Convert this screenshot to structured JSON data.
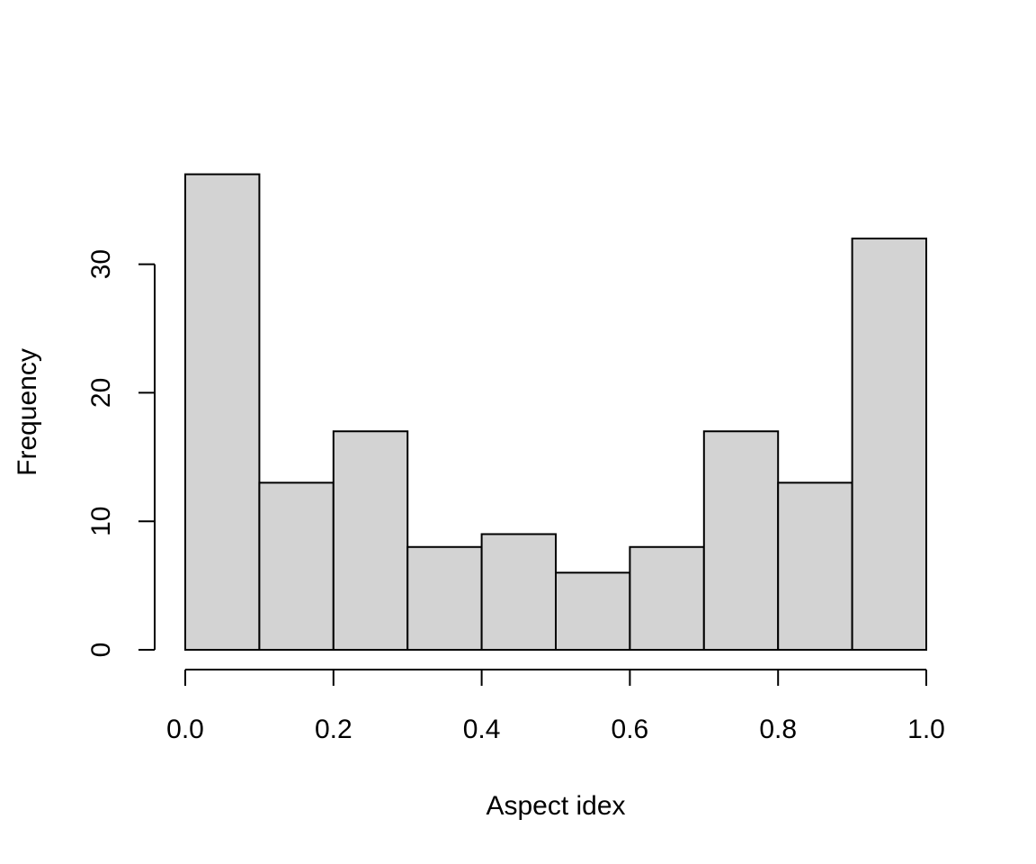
{
  "chart_data": {
    "type": "bar",
    "title": "",
    "xlabel": "Aspect idex",
    "ylabel": "Frequency",
    "bin_edges": [
      0.0,
      0.1,
      0.2,
      0.3,
      0.4,
      0.5,
      0.6,
      0.7,
      0.8,
      0.9,
      1.0
    ],
    "values": [
      37,
      13,
      17,
      8,
      9,
      6,
      8,
      17,
      13,
      32
    ],
    "xlim": [
      0.0,
      1.0
    ],
    "ylim": [
      0,
      37
    ],
    "x_ticks": [
      0.0,
      0.2,
      0.4,
      0.6,
      0.8,
      1.0
    ],
    "x_tick_labels": [
      "0.0",
      "0.2",
      "0.4",
      "0.6",
      "0.8",
      "1.0"
    ],
    "y_ticks": [
      0,
      10,
      20,
      30
    ],
    "y_tick_labels": [
      "0",
      "10",
      "20",
      "30"
    ],
    "grid": false,
    "bar_fill_color": "#d3d3d3",
    "bar_edge_color": "#000000"
  }
}
